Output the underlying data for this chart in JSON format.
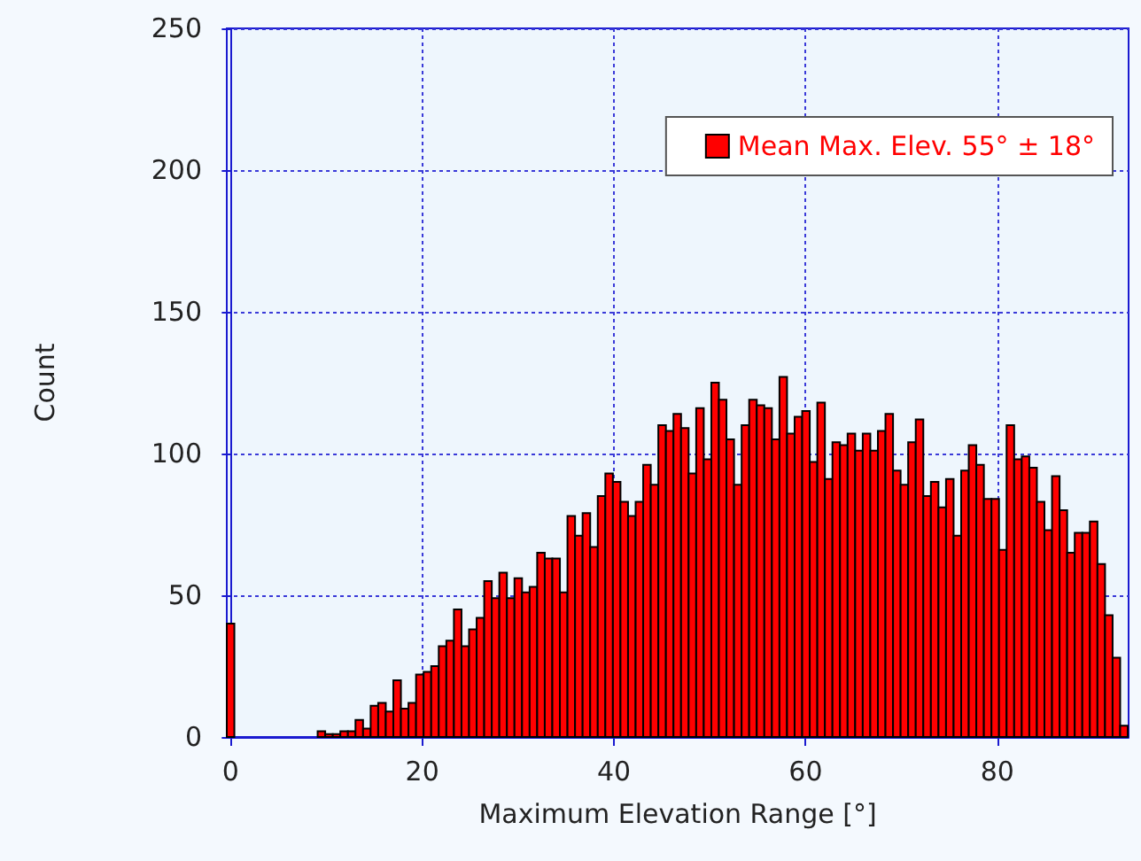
{
  "chart_data": {
    "type": "histogram",
    "xlabel": "Maximum Elevation Range [°]",
    "ylabel": "Count",
    "bins": [
      -0.4,
      0.39,
      1.18,
      1.97,
      2.76,
      3.55,
      4.34,
      5.13,
      5.92,
      6.71,
      7.5,
      8.29,
      9.08,
      9.87,
      10.66,
      11.45,
      12.24,
      13.03,
      13.82,
      14.61,
      15.4,
      16.19,
      16.98,
      17.77,
      18.56,
      19.35,
      20.14,
      20.93,
      21.72,
      22.51,
      23.3,
      24.09,
      24.88,
      25.67,
      26.46,
      27.25,
      28.04,
      28.83,
      29.62,
      30.41,
      31.2,
      31.99,
      32.78,
      33.57,
      34.36,
      35.15,
      35.94,
      36.73,
      37.52,
      38.31,
      39.1,
      39.89,
      40.68,
      41.47,
      42.26,
      43.05,
      43.84,
      44.63,
      45.42,
      46.21,
      47.0,
      47.79,
      48.58,
      49.37,
      50.16,
      50.95,
      51.74,
      52.53,
      53.32,
      54.11,
      54.9,
      55.69,
      56.48,
      57.27,
      58.06,
      58.85,
      59.64,
      60.43,
      61.22,
      62.01,
      62.8,
      63.59,
      64.38,
      65.17,
      65.96,
      66.75,
      67.54,
      68.33,
      69.12,
      69.91,
      70.7,
      71.49,
      72.28,
      73.07,
      73.86,
      74.65,
      75.44,
      76.23,
      77.02,
      77.81,
      78.6,
      79.39,
      80.18,
      80.97,
      81.76,
      82.55,
      83.34,
      84.13,
      84.92,
      85.71,
      86.5,
      87.29,
      88.08,
      88.87,
      89.66,
      90.45,
      91.24,
      92.03,
      92.82,
      93.61
    ],
    "series": [
      {
        "name": "Mean Max. Elev. 55° ± 18°",
        "color": "#ff0000",
        "values": [
          40,
          0,
          0,
          0,
          0,
          0,
          0,
          0,
          0,
          0,
          0,
          0,
          2,
          1,
          1,
          2,
          2,
          6,
          3,
          11,
          12,
          9,
          20,
          10,
          12,
          22,
          23,
          25,
          32,
          34,
          45,
          32,
          38,
          42,
          55,
          49,
          58,
          49,
          56,
          51,
          53,
          65,
          63,
          63,
          51,
          78,
          71,
          79,
          67,
          85,
          93,
          90,
          83,
          78,
          83,
          96,
          89,
          110,
          108,
          114,
          109,
          93,
          116,
          98,
          125,
          119,
          105,
          89,
          110,
          119,
          117,
          116,
          105,
          127,
          107,
          113,
          115,
          97,
          118,
          91,
          104,
          103,
          107,
          101,
          107,
          101,
          108,
          114,
          94,
          89,
          104,
          112,
          85,
          90,
          81,
          91,
          71,
          94,
          103,
          96,
          84,
          84,
          66,
          110,
          98,
          99,
          95,
          83,
          73,
          92,
          80,
          65,
          72,
          72,
          76,
          61,
          43,
          28,
          4
        ]
      }
    ],
    "xlim": [
      -0.4,
      93.7
    ],
    "xticks": [
      0,
      20,
      40,
      60,
      80
    ],
    "ylim": [
      0,
      250
    ],
    "yticks": [
      0,
      50,
      100,
      150,
      200,
      250
    ],
    "grid": true,
    "legend": "top right"
  }
}
